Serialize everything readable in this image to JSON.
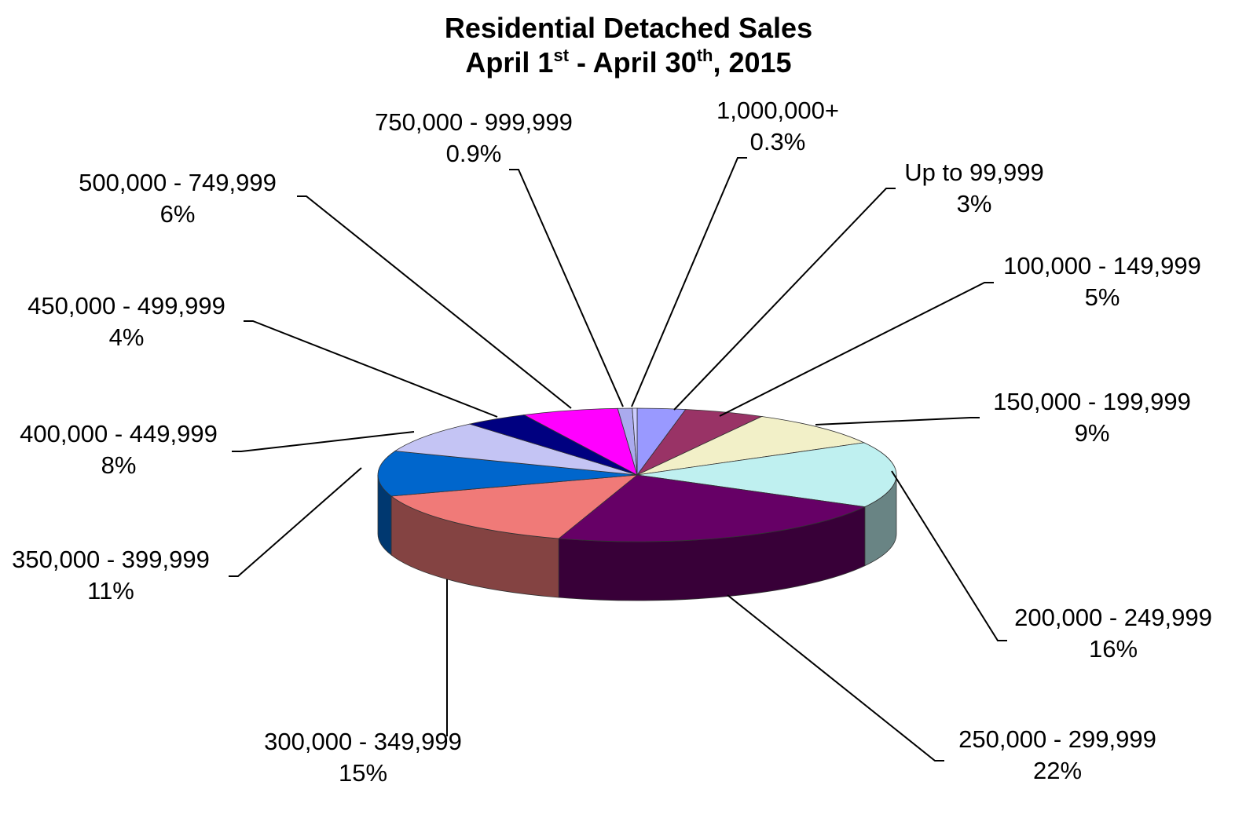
{
  "chart_data": {
    "type": "pie",
    "title_line1": "Residential Detached Sales",
    "title_line2": {
      "p1": "April 1",
      "sup1": "st",
      "p2": " - April 30",
      "sup2": "th",
      "p3": ", 2015"
    },
    "slices": [
      {
        "label": "Up to 99,999",
        "value": 3,
        "pct_label": "3%",
        "color": "#9999ff"
      },
      {
        "label": "100,000 - 149,999",
        "value": 5,
        "pct_label": "5%",
        "color": "#993366"
      },
      {
        "label": "150,000 - 199,999",
        "value": 9,
        "pct_label": "9%",
        "color": "#f2f0c8"
      },
      {
        "label": "200,000 - 249,999",
        "value": 16,
        "pct_label": "16%",
        "color": "#bff0f0"
      },
      {
        "label": "250,000 - 299,999",
        "value": 22,
        "pct_label": "22%",
        "color": "#660066"
      },
      {
        "label": "300,000 - 349,999",
        "value": 15,
        "pct_label": "15%",
        "color": "#f07a78"
      },
      {
        "label": "350,000 - 399,999",
        "value": 11,
        "pct_label": "11%",
        "color": "#0066cc"
      },
      {
        "label": "400,000 - 449,999",
        "value": 8,
        "pct_label": "8%",
        "color": "#c4c4f4"
      },
      {
        "label": "450,000 - 499,999",
        "value": 4,
        "pct_label": "4%",
        "color": "#000080"
      },
      {
        "label": "500,000 - 749,999",
        "value": 6,
        "pct_label": "6%",
        "color": "#ff00ff"
      },
      {
        "label": "750,000 - 999,999",
        "value": 0.9,
        "pct_label": "0.9%",
        "color": "#aaaaee"
      },
      {
        "label": "1,000,000+",
        "value": 0.3,
        "pct_label": "0.3%",
        "color": "#ccccff"
      }
    ]
  }
}
